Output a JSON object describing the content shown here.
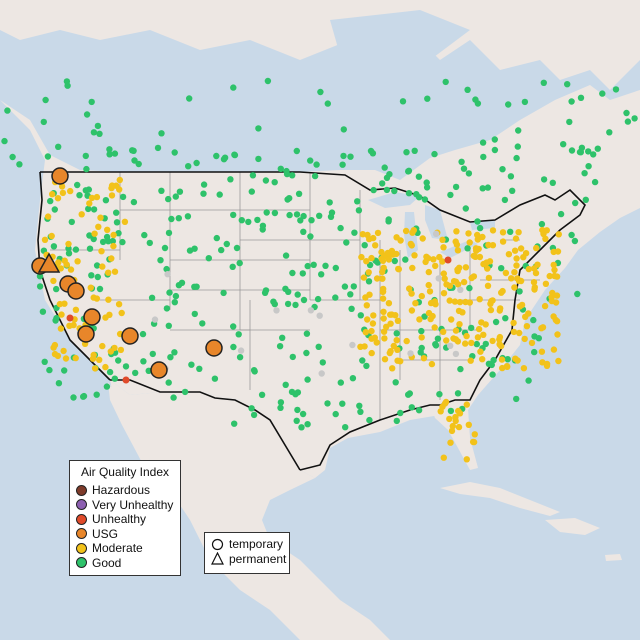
{
  "legend": {
    "title": "Air Quality Index",
    "categories": [
      {
        "label": "Hazardous",
        "color": "#7e3b2a"
      },
      {
        "label": "Very Unhealthy",
        "color": "#8c5fb0"
      },
      {
        "label": "Unhealthy",
        "color": "#e04a2a"
      },
      {
        "label": "USG",
        "color": "#e8862a"
      },
      {
        "label": "Moderate",
        "color": "#f2c21a"
      },
      {
        "label": "Good",
        "color": "#2ec26a"
      }
    ]
  },
  "shape_legend": {
    "items": [
      {
        "label": "temporary",
        "icon": "circle-icon"
      },
      {
        "label": "permanent",
        "icon": "triangle-icon"
      }
    ]
  },
  "colors": {
    "ocean": "#c9d9e8",
    "land": "#ede7e3",
    "state_border": "#9a9a9a",
    "country_border": "#111111",
    "missing": "#c8c8c8"
  }
}
